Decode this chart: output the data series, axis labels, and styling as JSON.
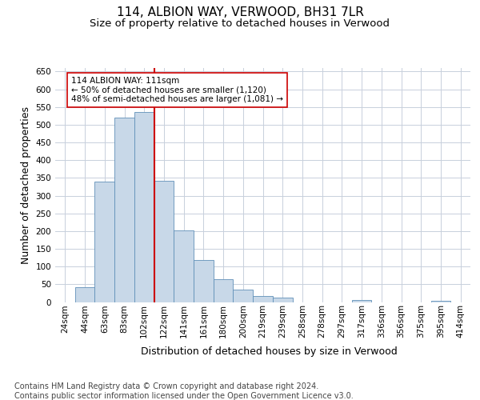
{
  "title_line1": "114, ALBION WAY, VERWOOD, BH31 7LR",
  "title_line2": "Size of property relative to detached houses in Verwood",
  "xlabel": "Distribution of detached houses by size in Verwood",
  "ylabel": "Number of detached properties",
  "bin_labels": [
    "24sqm",
    "44sqm",
    "63sqm",
    "83sqm",
    "102sqm",
    "122sqm",
    "141sqm",
    "161sqm",
    "180sqm",
    "200sqm",
    "219sqm",
    "239sqm",
    "258sqm",
    "278sqm",
    "297sqm",
    "317sqm",
    "336sqm",
    "356sqm",
    "375sqm",
    "395sqm",
    "414sqm"
  ],
  "bar_heights": [
    0,
    42,
    340,
    520,
    535,
    342,
    202,
    118,
    65,
    36,
    18,
    12,
    0,
    0,
    0,
    5,
    0,
    0,
    0,
    3,
    0
  ],
  "bar_color": "#c8d8e8",
  "bar_edgecolor": "#6090b8",
  "vline_x": 4.5,
  "vline_color": "#cc0000",
  "annotation_text": "114 ALBION WAY: 111sqm\n← 50% of detached houses are smaller (1,120)\n48% of semi-detached houses are larger (1,081) →",
  "annotation_box_color": "#ffffff",
  "annotation_box_edgecolor": "#cc0000",
  "ylim": [
    0,
    660
  ],
  "yticks": [
    0,
    50,
    100,
    150,
    200,
    250,
    300,
    350,
    400,
    450,
    500,
    550,
    600,
    650
  ],
  "grid_color": "#c8d0dc",
  "footnote": "Contains HM Land Registry data © Crown copyright and database right 2024.\nContains public sector information licensed under the Open Government Licence v3.0.",
  "title_fontsize": 11,
  "subtitle_fontsize": 9.5,
  "label_fontsize": 9,
  "tick_fontsize": 7.5,
  "footnote_fontsize": 7
}
